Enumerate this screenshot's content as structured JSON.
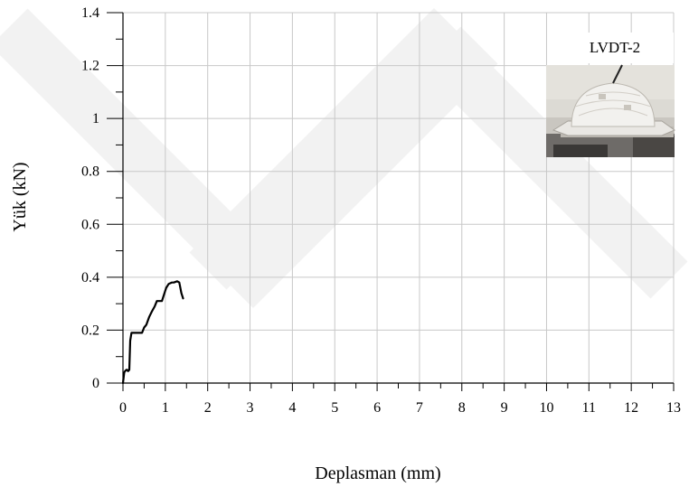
{
  "chart_data": {
    "type": "line",
    "title": "",
    "xlabel": "Deplasman (mm)",
    "ylabel": "Yük (kN)",
    "xlim": [
      0,
      13
    ],
    "ylim": [
      0,
      1.4
    ],
    "x_ticks": [
      0,
      1,
      2,
      3,
      4,
      5,
      6,
      7,
      8,
      9,
      10,
      11,
      12,
      13
    ],
    "x_tick_labels": [
      "0",
      "1",
      "2",
      "3",
      "4",
      "5",
      "6",
      "7",
      "8",
      "9",
      "10",
      "11",
      "12",
      "13"
    ],
    "y_ticks": [
      0,
      0.2,
      0.4,
      0.6,
      0.8,
      1.0,
      1.2,
      1.4
    ],
    "y_tick_labels": [
      "0",
      "0.2",
      "0.4",
      "0.6",
      "0.8",
      "1",
      "1.2",
      "1.4"
    ],
    "grid": true,
    "inset_label": "LVDT-2",
    "series": [
      {
        "color": "#000000",
        "x": [
          0.0,
          0.03,
          0.05,
          0.08,
          0.1,
          0.12,
          0.15,
          0.17,
          0.2,
          0.25,
          0.3,
          0.45,
          0.5,
          0.55,
          0.62,
          0.68,
          0.75,
          0.8,
          0.85,
          0.92,
          0.98,
          1.02,
          1.08,
          1.15,
          1.2,
          1.28,
          1.33,
          1.38,
          1.42
        ],
        "y": [
          0.0,
          0.04,
          0.045,
          0.05,
          0.05,
          0.045,
          0.05,
          0.16,
          0.19,
          0.19,
          0.19,
          0.19,
          0.21,
          0.22,
          0.25,
          0.27,
          0.29,
          0.31,
          0.31,
          0.31,
          0.34,
          0.36,
          0.375,
          0.38,
          0.38,
          0.385,
          0.38,
          0.34,
          0.32
        ]
      }
    ]
  }
}
